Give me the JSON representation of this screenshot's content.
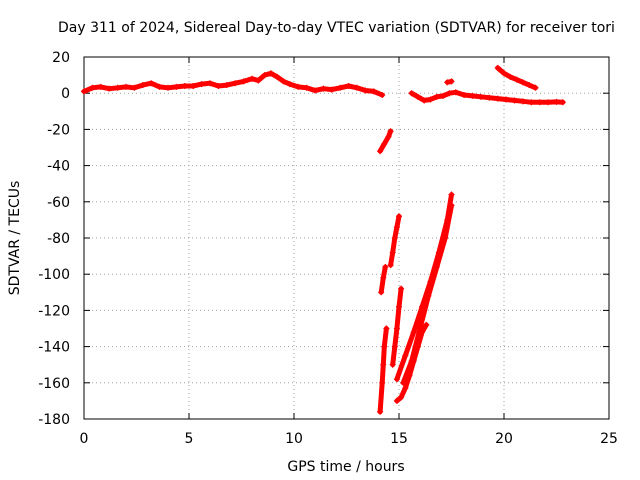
{
  "chart_data": {
    "type": "scatter",
    "title": "Day 311 of 2024, Sidereal Day-to-day VTEC variation (SDTVAR) for receiver tori",
    "xlabel": "GPS time / hours",
    "ylabel": "SDTVAR / TECUs",
    "xlim": [
      0,
      25
    ],
    "ylim": [
      -180,
      20
    ],
    "xticks": [
      "0",
      "5",
      "10",
      "15",
      "20",
      "25"
    ],
    "yticks": [
      "-180",
      "-160",
      "-140",
      "-120",
      "-100",
      "-80",
      "-60",
      "-40",
      "-20",
      "0",
      "20"
    ],
    "grid": true,
    "marker": "+",
    "color": "#ff0000",
    "series": [
      {
        "segments": [
          [
            [
              0.0,
              1.0
            ],
            [
              0.4,
              3.0
            ],
            [
              0.8,
              3.5
            ],
            [
              1.2,
              2.5
            ],
            [
              1.6,
              3.0
            ],
            [
              2.0,
              3.5
            ],
            [
              2.4,
              3.0
            ],
            [
              2.8,
              4.5
            ],
            [
              3.2,
              5.5
            ],
            [
              3.6,
              3.5
            ],
            [
              4.0,
              3.0
            ],
            [
              4.4,
              3.5
            ],
            [
              4.8,
              4.0
            ],
            [
              5.2,
              4.0
            ],
            [
              5.6,
              5.0
            ],
            [
              6.0,
              5.5
            ],
            [
              6.4,
              4.0
            ],
            [
              6.8,
              4.5
            ],
            [
              7.2,
              5.5
            ],
            [
              7.6,
              6.5
            ],
            [
              8.0,
              8.0
            ],
            [
              8.3,
              7.0
            ],
            [
              8.6,
              10.0
            ],
            [
              8.9,
              11.0
            ],
            [
              9.2,
              9.0
            ],
            [
              9.5,
              6.5
            ],
            [
              9.8,
              5.0
            ],
            [
              10.2,
              3.5
            ],
            [
              10.6,
              3.0
            ],
            [
              11.0,
              1.5
            ],
            [
              11.4,
              2.5
            ],
            [
              11.8,
              2.0
            ],
            [
              12.2,
              3.0
            ],
            [
              12.6,
              4.0
            ],
            [
              13.0,
              3.0
            ],
            [
              13.4,
              1.5
            ],
            [
              13.8,
              1.0
            ],
            [
              14.2,
              -1.0
            ]
          ],
          [
            [
              15.6,
              0.0
            ],
            [
              15.9,
              -2.0
            ],
            [
              16.2,
              -4.0
            ],
            [
              16.5,
              -3.5
            ],
            [
              16.8,
              -2.0
            ],
            [
              17.1,
              -1.5
            ],
            [
              17.4,
              0.0
            ],
            [
              17.7,
              0.5
            ],
            [
              18.1,
              -1.0
            ],
            [
              18.5,
              -1.5
            ],
            [
              18.9,
              -2.0
            ],
            [
              19.3,
              -2.5
            ],
            [
              19.7,
              -3.0
            ],
            [
              20.1,
              -3.5
            ],
            [
              20.5,
              -4.0
            ],
            [
              20.9,
              -4.5
            ],
            [
              21.3,
              -5.0
            ],
            [
              21.7,
              -5.0
            ],
            [
              22.1,
              -5.0
            ],
            [
              22.5,
              -4.8
            ],
            [
              22.8,
              -5.0
            ]
          ],
          [
            [
              19.7,
              14.0
            ],
            [
              20.0,
              11.0
            ],
            [
              20.3,
              9.0
            ],
            [
              20.6,
              7.5
            ],
            [
              20.9,
              6.0
            ],
            [
              21.2,
              4.5
            ],
            [
              21.5,
              3.0
            ]
          ],
          [
            [
              14.1,
              -32.0
            ],
            [
              14.3,
              -28.0
            ],
            [
              14.5,
              -24.0
            ],
            [
              14.6,
              -21.0
            ]
          ],
          [
            [
              14.1,
              -176.0
            ],
            [
              14.2,
              -160.0
            ],
            [
              14.25,
              -150.0
            ],
            [
              14.3,
              -140.0
            ],
            [
              14.4,
              -130.0
            ]
          ],
          [
            [
              14.15,
              -110.0
            ],
            [
              14.25,
              -102.0
            ],
            [
              14.35,
              -96.0
            ]
          ],
          [
            [
              14.6,
              -95.0
            ],
            [
              14.7,
              -88.0
            ],
            [
              14.8,
              -80.0
            ],
            [
              14.9,
              -74.0
            ],
            [
              15.0,
              -68.0
            ]
          ],
          [
            [
              14.7,
              -150.0
            ],
            [
              14.8,
              -140.0
            ],
            [
              14.9,
              -130.0
            ],
            [
              15.0,
              -118.0
            ],
            [
              15.1,
              -108.0
            ]
          ],
          [
            [
              14.9,
              -170.0
            ],
            [
              15.1,
              -168.0
            ],
            [
              15.3,
              -163.0
            ],
            [
              15.5,
              -156.0
            ],
            [
              15.7,
              -148.0
            ],
            [
              15.9,
              -140.0
            ],
            [
              16.1,
              -132.0
            ],
            [
              16.3,
              -128.0
            ]
          ],
          [
            [
              14.9,
              -158.0
            ],
            [
              15.3,
              -145.0
            ],
            [
              15.7,
              -132.0
            ],
            [
              16.1,
              -118.0
            ],
            [
              16.5,
              -104.0
            ],
            [
              16.9,
              -88.0
            ],
            [
              17.3,
              -70.0
            ],
            [
              17.5,
              -56.0
            ]
          ],
          [
            [
              15.2,
              -160.0
            ],
            [
              15.6,
              -148.0
            ],
            [
              16.0,
              -130.0
            ],
            [
              16.4,
              -112.0
            ],
            [
              16.8,
              -96.0
            ],
            [
              17.2,
              -80.0
            ],
            [
              17.5,
              -62.0
            ]
          ],
          [
            [
              17.3,
              6.0
            ],
            [
              17.5,
              6.5
            ]
          ]
        ]
      }
    ]
  }
}
